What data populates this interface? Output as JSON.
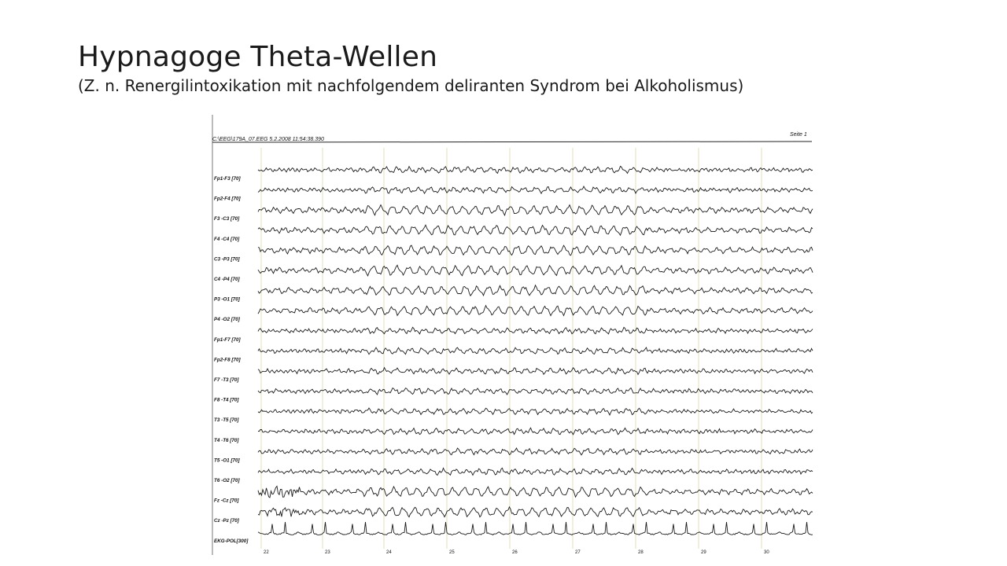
{
  "slide": {
    "title": "Hypnagoge Theta-Wellen",
    "subtitle": "(Z. n. Renergilintoxikation mit nachfolgendem deliranten Syndrom bei Alkoholismus)"
  },
  "eeg": {
    "file_header": "C:\\EEG\\179A_07.EEG  5.2.2008  11:54:38.390",
    "page_label": "Seite 1",
    "channels": [
      "Fp1-F3 [70]",
      "Fp2-F4 [70]",
      "F3 -C3 [70]",
      "F4 -C4 [70]",
      "C3 -P3 [70]",
      "C4 -P4 [70]",
      "P3 -O1 [70]",
      "P4 -O2 [70]",
      "Fp1-F7 [70]",
      "Fp2-F8 [70]",
      "F7 -T3 [70]",
      "F8 -T4 [70]",
      "T3 -T5 [70]",
      "T4 -T6 [70]",
      "T5 -O1 [70]",
      "T6 -O2 [70]",
      "Fz -Cz [70]",
      "Cz -Pz [70]",
      "EKG-POL[300]"
    ],
    "seconds": [
      "22",
      "23",
      "24",
      "25",
      "26",
      "27",
      "28",
      "29",
      "30"
    ]
  }
}
